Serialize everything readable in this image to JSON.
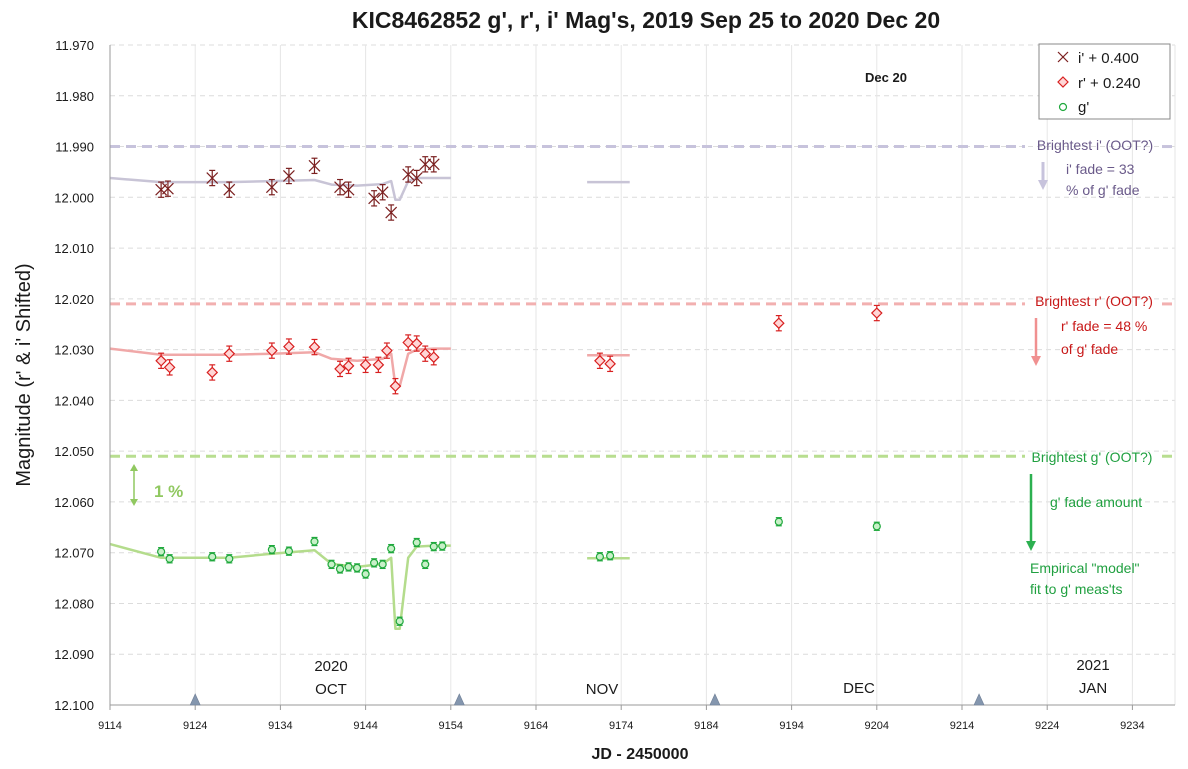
{
  "chart_data": {
    "type": "scatter",
    "title": "KIC8462852 g', r', i' Mag's, 2019 Sep 25 to 2020 Dec 20",
    "xlabel": "JD - 2450000",
    "ylabel": "Magnitude  (r' & i' Shifted)",
    "xlim": [
      9114,
      9239
    ],
    "ylim": [
      12.1,
      11.97
    ],
    "y_inverted": true,
    "x_ticks": [
      9114,
      9124,
      9134,
      9144,
      9154,
      9164,
      9174,
      9184,
      9194,
      9204,
      9214,
      9224,
      9234
    ],
    "y_ticks": [
      11.97,
      11.98,
      11.99,
      12.0,
      12.01,
      12.02,
      12.03,
      12.04,
      12.05,
      12.06,
      12.07,
      12.08,
      12.09,
      12.1
    ],
    "grid": true,
    "legend_position": "top-right",
    "legend": [
      "i' + 0.400",
      "r' + 0.240",
      "g'"
    ],
    "colors": {
      "i_marker": "#7b2020",
      "i_fit": "#c8c4d6",
      "i_ref": "#c7c3dc",
      "i_text": "#6a5a8a",
      "r_marker": "#d82020",
      "r_fit": "#f0a8a8",
      "r_ref": "#f2b0b0",
      "r_text": "#c81818",
      "g_marker": "#1fa83c",
      "g_fit": "#b4dc8c",
      "g_ref": "#b8de90",
      "g_text": "#20a040",
      "one_pct": "#90c860",
      "month_marker": "#8496ae"
    },
    "series": [
      {
        "name": "i' + 0.400",
        "marker": "x",
        "error": 0.0015,
        "x": [
          9120,
          9120.8,
          9126,
          9128,
          9133,
          9135,
          9138,
          9141,
          9142,
          9145,
          9146,
          9147,
          9149,
          9150,
          9151,
          9152
        ],
        "y": [
          11.9985,
          11.9983,
          11.9962,
          11.9985,
          11.998,
          11.9958,
          11.9938,
          11.998,
          11.9985,
          12.0002,
          11.999,
          12.003,
          11.9955,
          11.9962,
          11.9935,
          11.9935
        ]
      },
      {
        "name": "r' + 0.240",
        "marker": "diamond",
        "error": 0.0015,
        "x": [
          9120,
          9121,
          9126,
          9128,
          9133,
          9135,
          9138,
          9141,
          9142,
          9144,
          9145.5,
          9146.5,
          9147.5,
          9149,
          9150,
          9151,
          9152,
          9171.5,
          9172.7,
          9192.5,
          9204
        ],
        "y": [
          12.0322,
          12.0335,
          12.0345,
          12.0308,
          12.0302,
          12.0294,
          12.0295,
          12.0338,
          12.0332,
          12.033,
          12.033,
          12.0302,
          12.0372,
          12.0286,
          12.0288,
          12.0308,
          12.0315,
          12.0322,
          12.0328,
          12.0248,
          12.0228
        ]
      },
      {
        "name": "g'",
        "marker": "circle",
        "error": 0.0008,
        "x": [
          9120,
          9121,
          9126,
          9128,
          9133,
          9135,
          9138,
          9140,
          9141,
          9142,
          9143,
          9144,
          9145,
          9146,
          9147,
          9148,
          9150,
          9151,
          9152,
          9153,
          9171.5,
          9172.7,
          9192.5,
          9204
        ],
        "y": [
          12.0698,
          12.0712,
          12.0708,
          12.0712,
          12.0694,
          12.0697,
          12.0678,
          12.0723,
          12.0732,
          12.0728,
          12.073,
          12.0742,
          12.072,
          12.0723,
          12.0692,
          12.0835,
          12.068,
          12.0723,
          12.0688,
          12.0687,
          12.0708,
          12.0706,
          12.0639,
          12.0648
        ]
      }
    ],
    "fits": [
      {
        "name": "i' fit",
        "x": [
          9114,
          9120,
          9128,
          9133,
          9138,
          9140,
          9143,
          9146,
          9147,
          9147.5,
          9148,
          9149,
          9150,
          9152,
          9154
        ],
        "y": [
          11.9962,
          11.997,
          11.997,
          11.9968,
          11.9966,
          11.9975,
          11.9977,
          11.9974,
          11.9968,
          12.0005,
          12.0005,
          11.9968,
          11.9962,
          11.9962,
          11.9962
        ],
        "segment2": {
          "x": [
            9170,
            9175
          ],
          "y": [
            11.997,
            11.997
          ]
        }
      },
      {
        "name": "r' fit",
        "x": [
          9114,
          9120,
          9128,
          9133,
          9138,
          9140,
          9143,
          9146,
          9147,
          9147.5,
          9148,
          9149,
          9150,
          9152,
          9154
        ],
        "y": [
          12.0298,
          12.031,
          12.031,
          12.0308,
          12.0305,
          12.0318,
          12.0322,
          12.0318,
          12.0308,
          12.0372,
          12.0372,
          12.0308,
          12.03,
          12.0298,
          12.0298
        ],
        "segment2": {
          "x": [
            9170,
            9175
          ],
          "y": [
            12.0311,
            12.0311
          ]
        }
      },
      {
        "name": "g' fit",
        "x": [
          9114,
          9120,
          9128,
          9133,
          9138,
          9140,
          9143,
          9146,
          9147,
          9147.5,
          9148,
          9149,
          9150,
          9152,
          9154
        ],
        "y": [
          12.0683,
          12.071,
          12.071,
          12.0702,
          12.0695,
          12.0722,
          12.0728,
          12.0722,
          12.071,
          12.085,
          12.085,
          12.071,
          12.0688,
          12.0686,
          12.0686
        ],
        "segment2": {
          "x": [
            9170,
            9175
          ],
          "y": [
            12.0711,
            12.0711
          ]
        }
      }
    ],
    "reference_lines": [
      {
        "name": "Brightest i' (OOT?)",
        "y": 11.99
      },
      {
        "name": "Brightest r' (OOT?)",
        "y": 12.021
      },
      {
        "name": "Brightest g' (OOT?)",
        "y": 12.051
      }
    ],
    "month_markers_x": [
      9124,
      9155,
      9185,
      9216
    ],
    "annotations": {
      "one_percent": "1 %",
      "i_fade_line1": "i' fade = 33",
      "i_fade_line2": "% of g' fade",
      "r_fade_line1": "r' fade = 48 %",
      "r_fade_line2": "of g' fade",
      "g_fade": "g' fade amount",
      "model_line1": "Empirical \"model\"",
      "model_line2": "fit to g' meas'ts",
      "date_label": "Dec 20",
      "year_2020": "2020",
      "year_2021": "2021",
      "month_oct": "OCT",
      "month_nov": "NOV",
      "month_dec": "DEC",
      "month_jan": "JAN"
    }
  }
}
